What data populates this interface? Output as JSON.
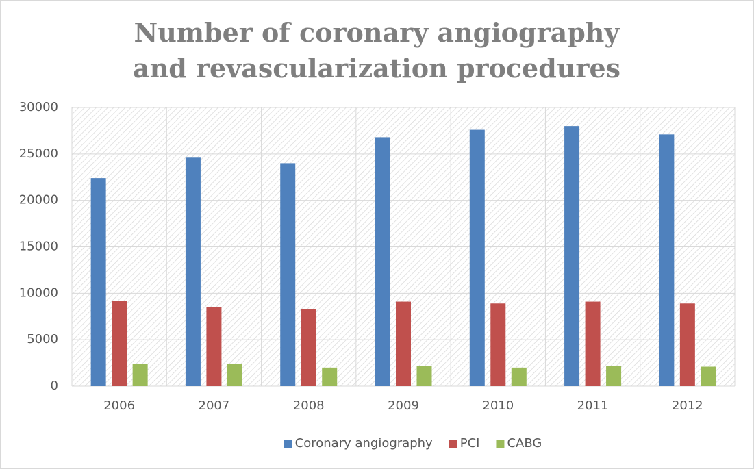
{
  "chart_data": {
    "type": "bar",
    "title": "Number of coronary angiography and revascularization procedures",
    "categories": [
      "2006",
      "2007",
      "2008",
      "2009",
      "2010",
      "2011",
      "2012"
    ],
    "series": [
      {
        "name": "Coronary angiography",
        "color": "#4f81bd",
        "values": [
          22400,
          24600,
          24000,
          26800,
          27600,
          28000,
          27100
        ]
      },
      {
        "name": "PCI",
        "color": "#c0504d",
        "values": [
          9200,
          8550,
          8300,
          9100,
          8900,
          9100,
          8900
        ]
      },
      {
        "name": "CABG",
        "color": "#9bbb59",
        "values": [
          2400,
          2400,
          2000,
          2200,
          2000,
          2200,
          2100
        ]
      }
    ],
    "ylim": [
      0,
      30000
    ],
    "yticks": [
      0,
      5000,
      10000,
      15000,
      20000,
      25000,
      30000
    ],
    "grid": true,
    "legend": "bottom"
  }
}
